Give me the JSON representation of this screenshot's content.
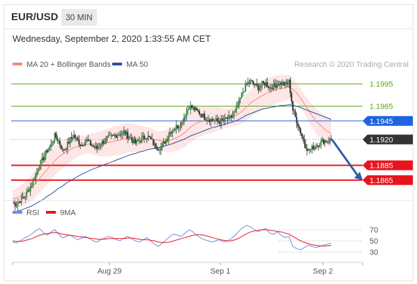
{
  "header": {
    "symbol": "EUR/USD",
    "timeframe": "30 MIN"
  },
  "datetime": "Wednesday, September 2, 2020 1:33:55 AM CET",
  "legend": [
    {
      "label": "MA 20 + Bollinger Bands",
      "color": "#f28b82"
    },
    {
      "label": "MA 50",
      "color": "#2a4f9a"
    }
  ],
  "credit": "Research © 2020 Trading Central",
  "chart_data": [
    {
      "type": "candlestick",
      "title": "",
      "x_ticks": [
        "Aug 29",
        "Sep 1",
        "Sep 2"
      ],
      "ylim": [
        1.1845,
        1.2005
      ],
      "grid": false,
      "legend_placement": "top-left",
      "levels": [
        {
          "value": 1.1995,
          "label": "1.1995",
          "color": "#5aa51e",
          "kind": "resistance"
        },
        {
          "value": 1.1965,
          "label": "1.1965",
          "color": "#5aa51e",
          "kind": "resistance"
        },
        {
          "value": 1.1945,
          "label": "1.1945",
          "color": "#1e63e0",
          "kind": "pivot"
        },
        {
          "value": 1.192,
          "label": "1.1920",
          "color": "#333333",
          "kind": "last"
        },
        {
          "value": 1.1885,
          "label": "1.1885",
          "color": "#e8141c",
          "kind": "support"
        },
        {
          "value": 1.1865,
          "label": "1.1865",
          "color": "#e8141c",
          "kind": "support"
        }
      ],
      "forecast_arrow": {
        "from": 1.192,
        "to": 1.1865,
        "color": "#2b5fa8"
      },
      "price_path": [
        1.1835,
        1.1832,
        1.1838,
        1.1842,
        1.185,
        1.186,
        1.1872,
        1.1885,
        1.1895,
        1.1905,
        1.1912,
        1.1925,
        1.1918,
        1.1905,
        1.191,
        1.192,
        1.1925,
        1.1918,
        1.1912,
        1.192,
        1.1915,
        1.191,
        1.1908,
        1.1915,
        1.1918,
        1.1922,
        1.1924,
        1.1926,
        1.1928,
        1.193,
        1.1925,
        1.192,
        1.1915,
        1.1918,
        1.1922,
        1.1925,
        1.192,
        1.1912,
        1.1908,
        1.1912,
        1.192,
        1.193,
        1.1935,
        1.1938,
        1.1942,
        1.1955,
        1.1965,
        1.1962,
        1.1958,
        1.1955,
        1.195,
        1.1948,
        1.1946,
        1.1945,
        1.1944,
        1.1946,
        1.1948,
        1.195,
        1.1958,
        1.197,
        1.1985,
        1.1995,
        1.1998,
        1.1994,
        1.199,
        1.1995,
        1.1996,
        1.199,
        1.1992,
        1.1995,
        1.1996,
        1.1994,
        1.1998,
        1.196,
        1.1945,
        1.193,
        1.1915,
        1.1905,
        1.1908,
        1.1912,
        1.1915,
        1.1918,
        1.1918,
        1.192
      ],
      "ma20": [
        1.184,
        1.1841,
        1.1843,
        1.1846,
        1.185,
        1.1855,
        1.1861,
        1.1867,
        1.1873,
        1.1879,
        1.1885,
        1.1891,
        1.1896,
        1.19,
        1.1903,
        1.1906,
        1.1909,
        1.1911,
        1.1912,
        1.1913,
        1.1914,
        1.1914,
        1.1914,
        1.1914,
        1.1915,
        1.1916,
        1.1917,
        1.1918,
        1.1919,
        1.1921,
        1.1922,
        1.1922,
        1.1922,
        1.1921,
        1.1921,
        1.1921,
        1.1921,
        1.192,
        1.1919,
        1.1918,
        1.1918,
        1.1919,
        1.1921,
        1.1923,
        1.1926,
        1.193,
        1.1935,
        1.1939,
        1.1942,
        1.1944,
        1.1945,
        1.1946,
        1.1947,
        1.1948,
        1.1948,
        1.1948,
        1.1949,
        1.195,
        1.1952,
        1.1955,
        1.1959,
        1.1964,
        1.1969,
        1.1973,
        1.1976,
        1.1979,
        1.1982,
        1.1984,
        1.1986,
        1.1988,
        1.1989,
        1.199,
        1.1991,
        1.1988,
        1.1983,
        1.1976,
        1.1968,
        1.196,
        1.1952,
        1.1945,
        1.194,
        1.1935,
        1.1931,
        1.1928
      ],
      "ma50": [
        1.1822,
        1.1823,
        1.1824,
        1.1826,
        1.1828,
        1.183,
        1.1833,
        1.1836,
        1.1839,
        1.1843,
        1.1846,
        1.185,
        1.1854,
        1.1857,
        1.1861,
        1.1864,
        1.1867,
        1.187,
        1.1873,
        1.1875,
        1.1878,
        1.188,
        1.1882,
        1.1884,
        1.1886,
        1.1888,
        1.189,
        1.1892,
        1.1894,
        1.1896,
        1.1898,
        1.19,
        1.1901,
        1.1903,
        1.1904,
        1.1906,
        1.1907,
        1.1908,
        1.1909,
        1.191,
        1.1912,
        1.1913,
        1.1915,
        1.1917,
        1.1919,
        1.1921,
        1.1924,
        1.1926,
        1.1928,
        1.193,
        1.1932,
        1.1934,
        1.1936,
        1.1937,
        1.1939,
        1.194,
        1.1942,
        1.1943,
        1.1945,
        1.1947,
        1.195,
        1.1953,
        1.1955,
        1.1957,
        1.1959,
        1.1961,
        1.1962,
        1.1963,
        1.1964,
        1.1965,
        1.1966,
        1.1966,
        1.1967,
        1.1966,
        1.1965,
        1.1963,
        1.1961,
        1.1959,
        1.1957,
        1.1955,
        1.1953,
        1.1951,
        1.1949,
        1.1947
      ]
    },
    {
      "type": "line",
      "title": "",
      "ylim": [
        20,
        85
      ],
      "y_ticks": [
        70,
        50,
        30
      ],
      "legend": [
        {
          "label": "RSI",
          "color": "#6a8fe0"
        },
        {
          "label": "9MA",
          "color": "#e8141c"
        }
      ],
      "series": [
        {
          "name": "RSI",
          "values": [
            48,
            46,
            50,
            55,
            58,
            62,
            68,
            72,
            65,
            60,
            66,
            70,
            62,
            55,
            58,
            60,
            56,
            52,
            55,
            58,
            54,
            50,
            48,
            52,
            55,
            58,
            56,
            52,
            50,
            55,
            58,
            54,
            50,
            48,
            52,
            56,
            50,
            44,
            40,
            46,
            52,
            58,
            62,
            60,
            58,
            64,
            70,
            66,
            60,
            55,
            52,
            50,
            48,
            50,
            52,
            48,
            50,
            54,
            60,
            68,
            74,
            78,
            75,
            70,
            66,
            70,
            72,
            64,
            62,
            66,
            60,
            56,
            58,
            40,
            36,
            34,
            38,
            42,
            40,
            38,
            40,
            42,
            44,
            46
          ]
        },
        {
          "name": "9MA",
          "values": [
            50,
            49,
            49,
            50,
            52,
            54,
            57,
            60,
            62,
            63,
            64,
            65,
            64,
            62,
            61,
            60,
            59,
            58,
            57,
            56,
            55,
            54,
            53,
            53,
            53,
            54,
            54,
            54,
            54,
            54,
            55,
            55,
            54,
            53,
            52,
            52,
            51,
            50,
            48,
            47,
            47,
            48,
            50,
            52,
            54,
            56,
            58,
            60,
            61,
            61,
            60,
            58,
            56,
            54,
            52,
            51,
            50,
            50,
            52,
            55,
            59,
            63,
            66,
            68,
            69,
            70,
            70,
            69,
            68,
            67,
            66,
            64,
            62,
            58,
            54,
            50,
            47,
            45,
            43,
            42,
            41,
            41,
            41,
            42
          ]
        }
      ]
    }
  ],
  "rsi_panel": {
    "y_tick_labels": [
      "70",
      "50",
      "30"
    ]
  }
}
